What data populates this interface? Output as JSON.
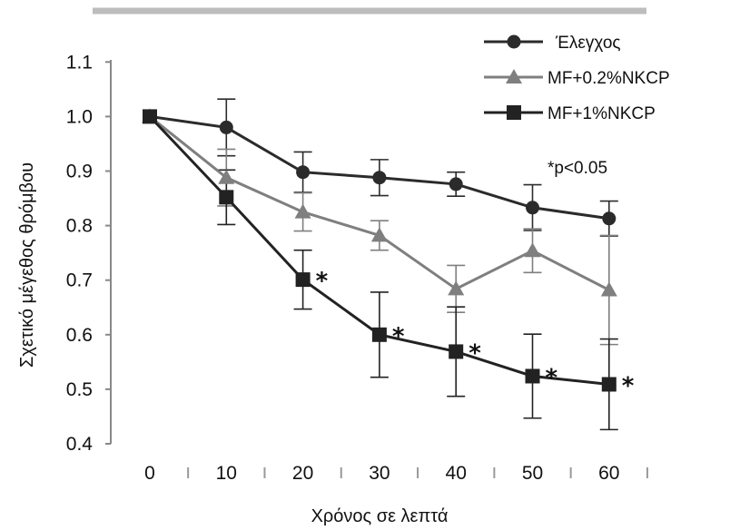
{
  "chart_data": {
    "type": "line",
    "title": "",
    "xlabel": "Χρόνος σε λεπτά",
    "ylabel": "Σχετικό μέγεθος θρόμβου",
    "x": [
      0,
      10,
      20,
      30,
      40,
      50,
      60
    ],
    "x_tick_labels": [
      "0",
      "10",
      "20",
      "30",
      "40",
      "50",
      "60"
    ],
    "y_ticks": [
      0.4,
      0.5,
      0.6,
      0.7,
      0.8,
      0.9,
      1.0,
      1.1
    ],
    "y_tick_labels": [
      "0.4",
      "0.5",
      "0.6",
      "0.7",
      "0.8",
      "0.9",
      "1.0",
      "1.1"
    ],
    "ylim": [
      0.4,
      1.1
    ],
    "grid": false,
    "legend_position": "top-right",
    "significance_note": "*p<0.05",
    "significance_marker": "*",
    "series": [
      {
        "name": "Έλεγχος",
        "marker": "circle",
        "color": "#2b2b2b",
        "values": [
          1.0,
          0.98,
          0.898,
          0.888,
          0.876,
          0.833,
          0.813
        ],
        "errors": [
          0,
          0.052,
          0.037,
          0.033,
          0.022,
          0.042,
          0.032
        ],
        "significant": [
          false,
          false,
          false,
          false,
          false,
          false,
          false
        ]
      },
      {
        "name": "MF+0.2%NKCP",
        "marker": "triangle",
        "color": "#7f7f7f",
        "values": [
          1.0,
          0.888,
          0.825,
          0.782,
          0.684,
          0.754,
          0.682
        ],
        "errors": [
          0,
          0.052,
          0.035,
          0.027,
          0.043,
          0.04,
          0.1
        ],
        "significant": [
          false,
          false,
          false,
          false,
          false,
          false,
          false
        ]
      },
      {
        "name": "MF+1%NKCP",
        "marker": "square",
        "color": "#222222",
        "values": [
          1.0,
          0.852,
          0.701,
          0.6,
          0.569,
          0.524,
          0.509
        ],
        "errors": [
          0,
          0.05,
          0.054,
          0.078,
          0.082,
          0.077,
          0.083
        ],
        "significant": [
          false,
          false,
          true,
          true,
          true,
          true,
          true
        ]
      }
    ]
  }
}
